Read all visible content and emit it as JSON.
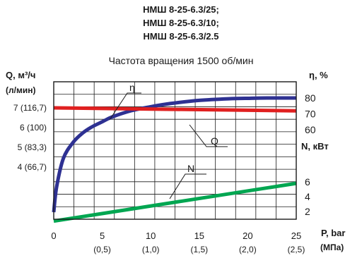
{
  "header": {
    "title_lines": [
      "НМШ 8-25-6.3/25;",
      "НМШ 8-25-6.3/10;",
      "НМШ 8-25-6.3/2.5"
    ],
    "subtitle": "Частота вращения 1500 об/мин"
  },
  "axes": {
    "left_title": "Q, м³/ч",
    "left_title_sub": "(л/мин)",
    "left_ticks": [
      "7 (116,7)",
      "6 (100)",
      "5 (83,3)",
      "4 (66,7)"
    ],
    "right_eta_title": "η, %",
    "right_eta_ticks": [
      "80",
      "70",
      "60"
    ],
    "right_n_title": "N, кВт",
    "right_n_ticks": [
      "6",
      "4",
      "2"
    ],
    "x_title": "P, bar",
    "x_title_sub": "(МПа)",
    "x_ticks": [
      "0",
      "5",
      "10",
      "15",
      "20",
      "25"
    ],
    "x_ticks_sub": [
      "(0,5)",
      "(1,0)",
      "(1,5)",
      "(2,0)",
      "(2,5)"
    ]
  },
  "chart_data": {
    "type": "line",
    "xlabel": "P, bar (МПа)",
    "xlim": [
      0,
      25
    ],
    "series": [
      {
        "name": "η",
        "axis": "η, %",
        "color": "#2e3192",
        "x": [
          0,
          0.3,
          1,
          2,
          3,
          4,
          5,
          6,
          8,
          10,
          12,
          15,
          18,
          20,
          22,
          25
        ],
        "y": [
          8,
          24,
          42,
          52,
          58,
          62,
          65,
          68,
          72,
          74.5,
          76.5,
          78.5,
          79.5,
          79.8,
          80,
          80
        ]
      },
      {
        "name": "Q",
        "axis": "Q, м³/ч",
        "color": "#e02020",
        "x": [
          0,
          25
        ],
        "y": [
          7.0,
          6.85
        ]
      },
      {
        "name": "N",
        "axis": "N, кВт",
        "color": "#00a651",
        "x": [
          0,
          25
        ],
        "y": [
          0.7,
          5.8
        ]
      }
    ]
  }
}
